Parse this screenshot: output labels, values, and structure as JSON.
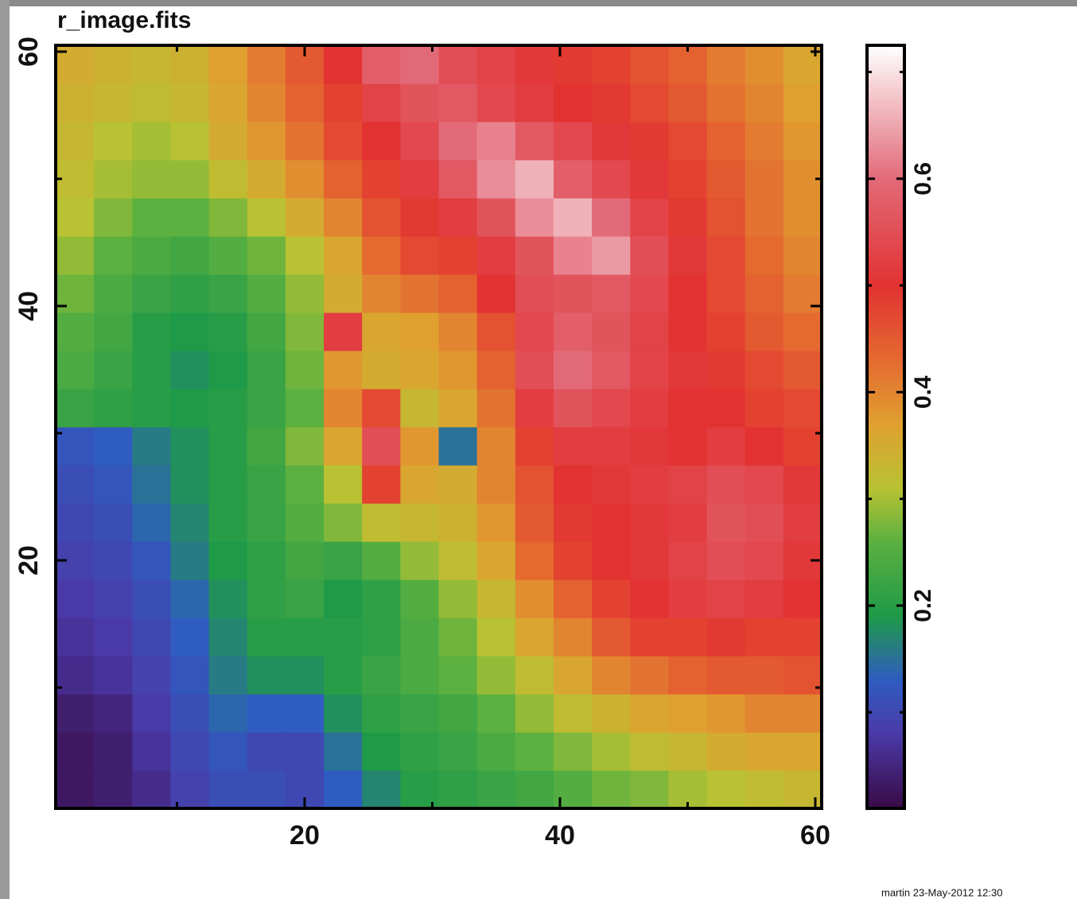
{
  "chart_data": {
    "type": "heatmap",
    "title": "r_image.fits",
    "footer": "martin 23-May-2012 12:30",
    "x": [
      2,
      5,
      8,
      11,
      14,
      17,
      20,
      23,
      26,
      29,
      32,
      35,
      38,
      41,
      44,
      47,
      50,
      53,
      56,
      59
    ],
    "y": [
      2,
      5,
      8,
      11,
      14,
      17,
      20,
      23,
      26,
      29,
      32,
      35,
      38,
      41,
      44,
      47,
      50,
      53,
      56,
      59
    ],
    "z": [
      [
        0.03,
        0.04,
        0.06,
        0.09,
        0.11,
        0.11,
        0.1,
        0.13,
        0.17,
        0.2,
        0.21,
        0.22,
        0.23,
        0.25,
        0.27,
        0.28,
        0.3,
        0.31,
        0.32,
        0.33
      ],
      [
        0.03,
        0.04,
        0.07,
        0.1,
        0.12,
        0.1,
        0.1,
        0.15,
        0.19,
        0.21,
        0.22,
        0.24,
        0.26,
        0.28,
        0.3,
        0.32,
        0.33,
        0.35,
        0.36,
        0.36
      ],
      [
        0.04,
        0.05,
        0.08,
        0.11,
        0.14,
        0.13,
        0.13,
        0.18,
        0.21,
        0.22,
        0.23,
        0.26,
        0.29,
        0.32,
        0.34,
        0.36,
        0.37,
        0.38,
        0.4,
        0.4
      ],
      [
        0.06,
        0.07,
        0.09,
        0.12,
        0.16,
        0.18,
        0.18,
        0.2,
        0.22,
        0.24,
        0.26,
        0.29,
        0.32,
        0.36,
        0.4,
        0.42,
        0.44,
        0.45,
        0.45,
        0.46
      ],
      [
        0.07,
        0.08,
        0.1,
        0.13,
        0.17,
        0.2,
        0.2,
        0.2,
        0.21,
        0.24,
        0.27,
        0.31,
        0.36,
        0.4,
        0.45,
        0.48,
        0.48,
        0.49,
        0.48,
        0.48
      ],
      [
        0.08,
        0.09,
        0.11,
        0.14,
        0.18,
        0.21,
        0.22,
        0.19,
        0.21,
        0.25,
        0.29,
        0.33,
        0.39,
        0.44,
        0.48,
        0.5,
        0.52,
        0.53,
        0.52,
        0.5
      ],
      [
        0.09,
        0.1,
        0.12,
        0.16,
        0.19,
        0.21,
        0.23,
        0.22,
        0.25,
        0.29,
        0.32,
        0.36,
        0.43,
        0.48,
        0.5,
        0.51,
        0.53,
        0.55,
        0.54,
        0.51
      ],
      [
        0.1,
        0.11,
        0.14,
        0.17,
        0.2,
        0.22,
        0.25,
        0.28,
        0.32,
        0.33,
        0.34,
        0.38,
        0.45,
        0.49,
        0.5,
        0.51,
        0.52,
        0.56,
        0.55,
        0.52
      ],
      [
        0.11,
        0.12,
        0.15,
        0.18,
        0.2,
        0.22,
        0.26,
        0.31,
        0.48,
        0.36,
        0.35,
        0.4,
        0.46,
        0.5,
        0.51,
        0.52,
        0.53,
        0.55,
        0.54,
        0.51
      ],
      [
        0.12,
        0.13,
        0.16,
        0.18,
        0.2,
        0.23,
        0.28,
        0.36,
        0.55,
        0.38,
        0.15,
        0.4,
        0.48,
        0.52,
        0.52,
        0.51,
        0.5,
        0.52,
        0.5,
        0.48
      ],
      [
        0.22,
        0.21,
        0.2,
        0.19,
        0.2,
        0.22,
        0.26,
        0.4,
        0.47,
        0.33,
        0.36,
        0.42,
        0.52,
        0.56,
        0.54,
        0.52,
        0.5,
        0.5,
        0.48,
        0.47
      ],
      [
        0.24,
        0.22,
        0.2,
        0.18,
        0.19,
        0.22,
        0.27,
        0.38,
        0.35,
        0.36,
        0.38,
        0.44,
        0.55,
        0.6,
        0.57,
        0.53,
        0.51,
        0.49,
        0.47,
        0.45
      ],
      [
        0.25,
        0.23,
        0.2,
        0.19,
        0.2,
        0.23,
        0.28,
        0.52,
        0.36,
        0.37,
        0.4,
        0.46,
        0.54,
        0.58,
        0.56,
        0.53,
        0.5,
        0.48,
        0.45,
        0.43
      ],
      [
        0.27,
        0.24,
        0.22,
        0.21,
        0.22,
        0.25,
        0.29,
        0.35,
        0.4,
        0.42,
        0.44,
        0.5,
        0.55,
        0.56,
        0.57,
        0.54,
        0.5,
        0.47,
        0.44,
        0.41
      ],
      [
        0.29,
        0.26,
        0.24,
        0.23,
        0.25,
        0.27,
        0.31,
        0.36,
        0.43,
        0.47,
        0.48,
        0.52,
        0.56,
        0.62,
        0.64,
        0.55,
        0.51,
        0.47,
        0.43,
        0.4
      ],
      [
        0.31,
        0.28,
        0.26,
        0.26,
        0.28,
        0.31,
        0.35,
        0.4,
        0.46,
        0.49,
        0.52,
        0.56,
        0.63,
        0.66,
        0.6,
        0.53,
        0.49,
        0.46,
        0.42,
        0.39
      ],
      [
        0.32,
        0.3,
        0.29,
        0.29,
        0.32,
        0.35,
        0.39,
        0.44,
        0.48,
        0.52,
        0.57,
        0.63,
        0.66,
        0.58,
        0.54,
        0.51,
        0.48,
        0.45,
        0.42,
        0.39
      ],
      [
        0.33,
        0.31,
        0.3,
        0.31,
        0.35,
        0.38,
        0.42,
        0.47,
        0.5,
        0.54,
        0.6,
        0.62,
        0.57,
        0.54,
        0.51,
        0.49,
        0.47,
        0.44,
        0.41,
        0.38
      ],
      [
        0.34,
        0.33,
        0.32,
        0.33,
        0.36,
        0.4,
        0.44,
        0.48,
        0.53,
        0.56,
        0.57,
        0.54,
        0.52,
        0.5,
        0.49,
        0.47,
        0.45,
        0.42,
        0.4,
        0.37
      ],
      [
        0.35,
        0.34,
        0.33,
        0.34,
        0.37,
        0.41,
        0.45,
        0.5,
        0.58,
        0.6,
        0.55,
        0.53,
        0.51,
        0.49,
        0.48,
        0.46,
        0.44,
        0.41,
        0.39,
        0.36
      ]
    ],
    "xlim": [
      0.5,
      60.5
    ],
    "ylim": [
      0.5,
      60.5
    ],
    "xticks": [
      20,
      40,
      60
    ],
    "yticks": [
      20,
      40,
      60
    ],
    "xminorticks": [
      10,
      30,
      50
    ],
    "yminorticks": [
      10,
      30,
      50
    ],
    "clim": [
      0.01,
      0.725
    ],
    "cticks": [
      0.2,
      0.4,
      0.6
    ],
    "cminorticks": [
      0.1,
      0.3,
      0.5,
      0.7
    ],
    "colormap": [
      [
        0.01,
        "#3a0a45"
      ],
      [
        0.08,
        "#4a3aa8"
      ],
      [
        0.13,
        "#2f5cc0"
      ],
      [
        0.19,
        "#1f9a48"
      ],
      [
        0.26,
        "#5cb040"
      ],
      [
        0.31,
        "#b8c232"
      ],
      [
        0.37,
        "#e0a030"
      ],
      [
        0.43,
        "#e46a30"
      ],
      [
        0.5,
        "#e23232"
      ],
      [
        0.6,
        "#e26a78"
      ],
      [
        0.725,
        "#ffffff"
      ]
    ]
  }
}
